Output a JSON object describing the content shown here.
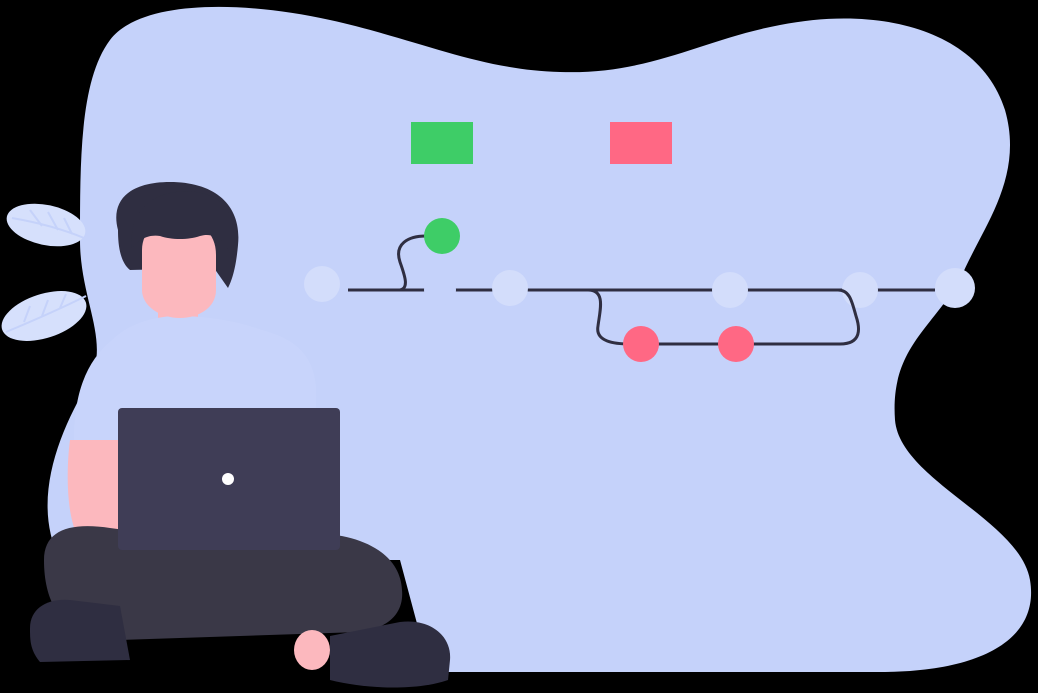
{
  "illustration": {
    "colors": {
      "blob": "#c5d2fa",
      "blob_light": "#d3ddfb",
      "line": "#2f2e41",
      "green": "#3ecd67",
      "red": "#ff6884",
      "hair": "#2f2e41",
      "skin": "#fcb8be",
      "shirt": "#c8d4fb",
      "laptop": "#3f3d56",
      "pants": "#3a3847",
      "shoes": "#2f2e41",
      "leaf": "#d6e0fc"
    },
    "icons": {
      "person": "person-with-laptop-icon",
      "laptop": "laptop-icon",
      "branch": "git-branch-icon",
      "leaf": "leaf-icon"
    }
  }
}
